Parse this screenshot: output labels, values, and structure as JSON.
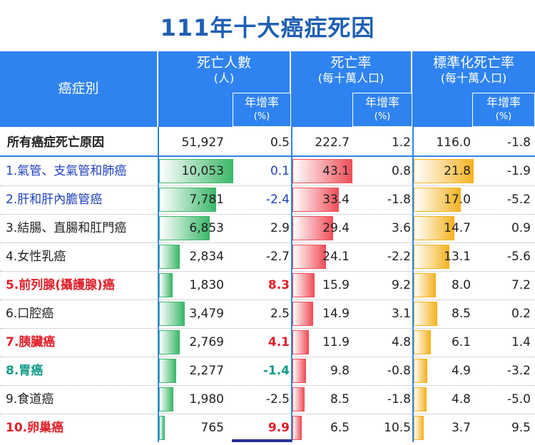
{
  "title": "111年十大癌症死因",
  "headers": {
    "cause": "癌症別",
    "deaths": {
      "main": "死亡人數",
      "sub": "(人)"
    },
    "rate": {
      "main": "死亡率",
      "sub": "(每十萬人口)"
    },
    "std_rate": {
      "main": "標準化死亡率",
      "sub": "(每十萬人口)"
    },
    "yoy": {
      "main": "年增率",
      "sub": "(%)"
    }
  },
  "total": {
    "label": "所有癌症死亡原因",
    "deaths": "51,927",
    "deaths_yoy": "0.5",
    "rate": "222.7",
    "rate_yoy": "1.2",
    "std": "116.0",
    "std_yoy": "-1.8"
  },
  "colors": {
    "header_blue": "#2f83f0",
    "title_blue": "#1f5fb4",
    "green_bar": "#3cb86a",
    "red_bar": "#f0505a",
    "orange_bar": "#f5b322",
    "label_blue": "#1f3fbf",
    "label_red": "#e0202a",
    "label_teal": "#139a8a",
    "label_black": "#222222"
  },
  "chart_data": {
    "type": "table",
    "rows": [
      {
        "label": "1.氣管、支氣管和肺癌",
        "label_color": "blue",
        "deaths": "10,053",
        "deaths_v": 10053,
        "deaths_yoy": "0.1",
        "deaths_yoy_color": "blue",
        "rate": "43.1",
        "rate_v": 43.1,
        "rate_yoy": "0.8",
        "std": "21.8",
        "std_v": 21.8,
        "std_yoy": "-1.9"
      },
      {
        "label": "2.肝和肝內膽管癌",
        "label_color": "blue",
        "deaths": "7,781",
        "deaths_v": 7781,
        "deaths_yoy": "-2.4",
        "deaths_yoy_color": "blue",
        "rate": "33.4",
        "rate_v": 33.4,
        "rate_yoy": "-1.8",
        "std": "17.0",
        "std_v": 17.0,
        "std_yoy": "-5.2"
      },
      {
        "label": "3.結腸、直腸和肛門癌",
        "label_color": "black",
        "deaths": "6,853",
        "deaths_v": 6853,
        "deaths_yoy": "2.9",
        "deaths_yoy_color": "black",
        "rate": "29.4",
        "rate_v": 29.4,
        "rate_yoy": "3.6",
        "std": "14.7",
        "std_v": 14.7,
        "std_yoy": "0.9"
      },
      {
        "label": "4.女性乳癌",
        "label_color": "black",
        "deaths": "2,834",
        "deaths_v": 2834,
        "deaths_yoy": "-2.7",
        "deaths_yoy_color": "black",
        "rate": "24.1",
        "rate_v": 24.1,
        "rate_yoy": "-2.2",
        "std": "13.1",
        "std_v": 13.1,
        "std_yoy": "-5.6"
      },
      {
        "label": "5.前列腺(攝護腺)癌",
        "label_color": "red",
        "deaths": "1,830",
        "deaths_v": 1830,
        "deaths_yoy": "8.3",
        "deaths_yoy_color": "red",
        "rate": "15.9",
        "rate_v": 15.9,
        "rate_yoy": "9.2",
        "std": "8.0",
        "std_v": 8.0,
        "std_yoy": "7.2"
      },
      {
        "label": "6.口腔癌",
        "label_color": "black",
        "deaths": "3,479",
        "deaths_v": 3479,
        "deaths_yoy": "2.5",
        "deaths_yoy_color": "black",
        "rate": "14.9",
        "rate_v": 14.9,
        "rate_yoy": "3.1",
        "std": "8.5",
        "std_v": 8.5,
        "std_yoy": "0.2"
      },
      {
        "label": "7.胰臟癌",
        "label_color": "red",
        "deaths": "2,769",
        "deaths_v": 2769,
        "deaths_yoy": "4.1",
        "deaths_yoy_color": "red",
        "rate": "11.9",
        "rate_v": 11.9,
        "rate_yoy": "4.8",
        "std": "6.1",
        "std_v": 6.1,
        "std_yoy": "1.4"
      },
      {
        "label": "8.胃癌",
        "label_color": "teal",
        "deaths": "2,277",
        "deaths_v": 2277,
        "deaths_yoy": "-1.4",
        "deaths_yoy_color": "teal",
        "rate": "9.8",
        "rate_v": 9.8,
        "rate_yoy": "-0.8",
        "std": "4.9",
        "std_v": 4.9,
        "std_yoy": "-3.2"
      },
      {
        "label": "9.食道癌",
        "label_color": "black",
        "deaths": "1,980",
        "deaths_v": 1980,
        "deaths_yoy": "-2.5",
        "deaths_yoy_color": "black",
        "rate": "8.5",
        "rate_v": 8.5,
        "rate_yoy": "-1.8",
        "std": "4.8",
        "std_v": 4.8,
        "std_yoy": "-5.0"
      },
      {
        "label": "10.卵巢癌",
        "label_color": "red",
        "deaths": "765",
        "deaths_v": 765,
        "deaths_yoy": "9.9",
        "deaths_yoy_color": "red",
        "rate": "6.5",
        "rate_v": 6.5,
        "rate_yoy": "10.5",
        "std": "3.7",
        "std_v": 3.7,
        "std_yoy": "9.5"
      }
    ]
  }
}
